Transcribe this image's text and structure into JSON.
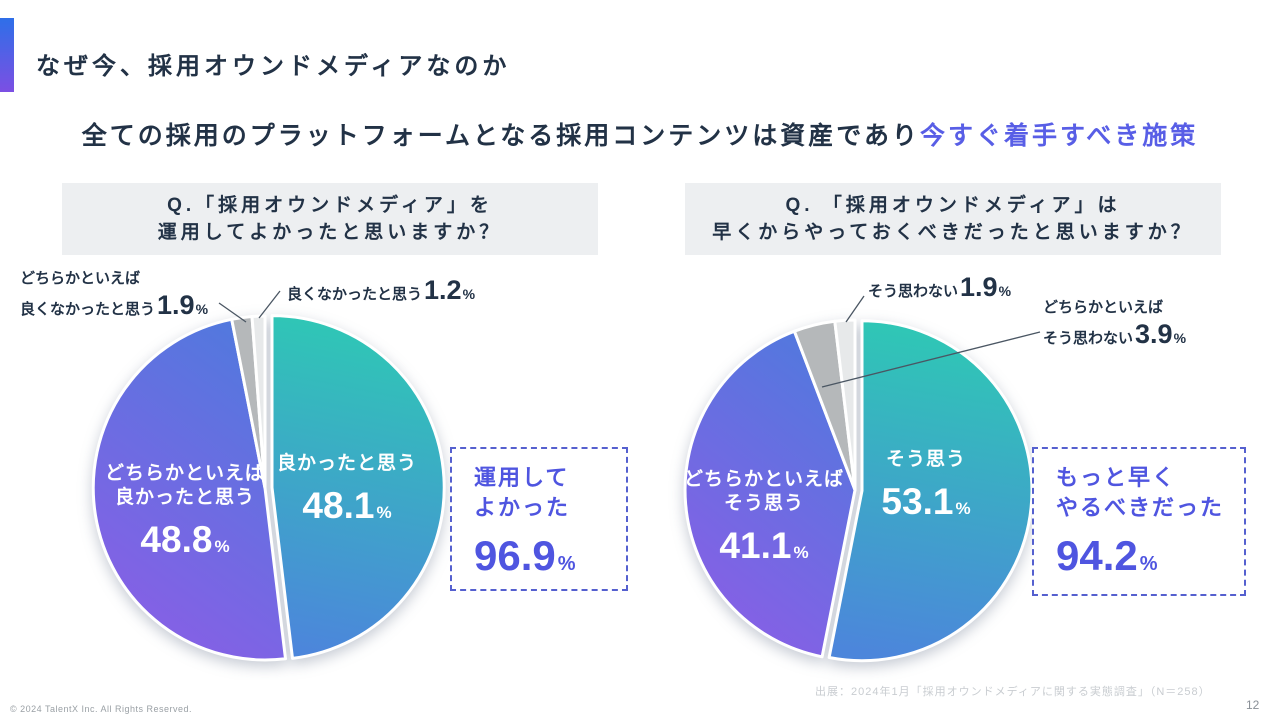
{
  "page": {
    "title": "なぜ今、採用オウンドメディアなのか",
    "subtitle_plain": "全ての採用のプラットフォームとなる採用コンテンツは資産であり",
    "subtitle_accent": "今すぐ着手すべき施策",
    "footer_source": "出展：2024年1月「採用オウンドメディアに関する実態調査」（N＝258）",
    "copyright": "© 2024 TalentX Inc. All Rights Reserved.",
    "page_number": "12"
  },
  "colors": {
    "accent_bar_top": "#2E6FE8",
    "accent_bar_bottom": "#7C4FE3",
    "subtitle_accent": "#585EE6",
    "teal_start": "#2EC9B4",
    "teal_end": "#4C86DB",
    "purple_start": "#5378DE",
    "purple_end": "#8A5EE6",
    "gray_slice": "#B5B8BA",
    "light_gray_slice": "#E7E9EA",
    "summary_border": "#5560CF",
    "summary_text": "#4F55E0",
    "question_bg": "#EDEFF1",
    "dark_text": "#223246",
    "slice_label_text": "#FFFFFF"
  },
  "chart_data": [
    {
      "type": "pie",
      "unit": "%",
      "title": "Q.「採用オウンドメディア」を運用してよかったと思いますか？",
      "question_lines": [
        "Q.「採用オウンドメディア」を",
        "運用してよかったと思いますか？"
      ],
      "slices": [
        {
          "label": "良かったと思う",
          "value": 48.1,
          "value_label": "48.1",
          "color": "teal",
          "lines": [
            "良かったと思う"
          ]
        },
        {
          "label": "どちらかといえば良かったと思う",
          "value": 48.8,
          "value_label": "48.8",
          "color": "purple",
          "lines": [
            "どちらかといえば",
            "良かったと思う"
          ]
        },
        {
          "label": "どちらかといえば良くなかったと思う",
          "value": 1.9,
          "value_label": "1.9",
          "color": "gray",
          "lines": [
            "どちらかといえば",
            "良くなかったと思う"
          ]
        },
        {
          "label": "良くなかったと思う",
          "value": 1.2,
          "value_label": "1.2",
          "color": "lightgray",
          "lines": [
            "良くなかったと思う"
          ]
        }
      ],
      "summary": {
        "lines": [
          "運用して",
          "よかった"
        ],
        "value": 96.9,
        "value_label": "96.9"
      }
    },
    {
      "type": "pie",
      "unit": "%",
      "title": "Q. 「採用オウンドメディア」は早くからやっておくべきだったと思いますか？",
      "question_lines": [
        "Q. 「採用オウンドメディア」は",
        "早くからやっておくべきだったと思いますか？"
      ],
      "slices": [
        {
          "label": "そう思う",
          "value": 53.1,
          "value_label": "53.1",
          "color": "teal",
          "lines": [
            "そう思う"
          ]
        },
        {
          "label": "どちらかといえばそう思う",
          "value": 41.1,
          "value_label": "41.1",
          "color": "purple",
          "lines": [
            "どちらかといえば",
            "そう思う"
          ]
        },
        {
          "label": "どちらかといえばそう思わない",
          "value": 3.9,
          "value_label": "3.9",
          "color": "gray",
          "lines": [
            "どちらかといえば",
            "そう思わない"
          ]
        },
        {
          "label": "そう思わない",
          "value": 1.9,
          "value_label": "1.9",
          "color": "lightgray",
          "lines": [
            "そう思わない"
          ]
        }
      ],
      "summary": {
        "lines": [
          "もっと早く",
          "やるべきだった"
        ],
        "value": 94.2,
        "value_label": "94.2"
      }
    }
  ]
}
